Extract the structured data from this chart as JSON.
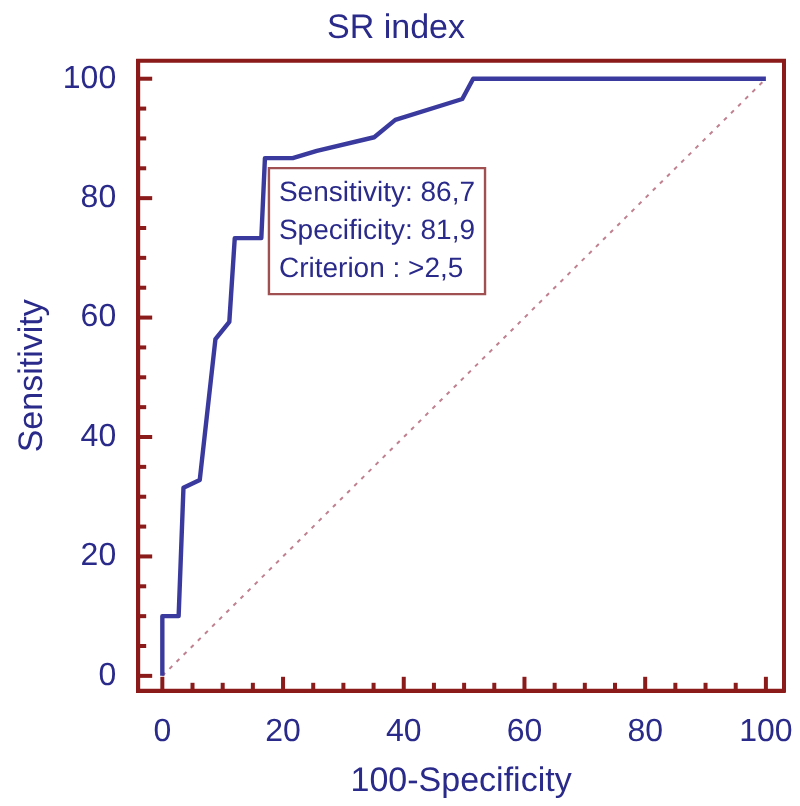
{
  "chart_data": {
    "type": "line",
    "title": "SR index",
    "xlabel": "100-Specificity",
    "ylabel": "Sensitivity",
    "xlim": [
      -4,
      103
    ],
    "ylim": [
      -2.5,
      103
    ],
    "xticks": [
      0,
      20,
      40,
      60,
      80,
      100
    ],
    "yticks": [
      0,
      20,
      40,
      60,
      80,
      100
    ],
    "grid": false,
    "legend": false,
    "marker": "none",
    "series": [
      {
        "color": "#3a3a9e",
        "line_style": "solid",
        "x": [
          0,
          0,
          2.7,
          3.5,
          6.2,
          8.8,
          11.1,
          12,
          16.4,
          17,
          21.6,
          25.6,
          35.1,
          38.6,
          49.7,
          51.5,
          100
        ],
        "values": [
          0,
          10,
          10,
          31.5,
          32.8,
          56.4,
          59.3,
          73.3,
          73.3,
          86.7,
          86.7,
          87.9,
          90.2,
          93.1,
          96.6,
          100,
          100
        ]
      },
      {
        "color": "#c08090",
        "line_style": "dotted",
        "x": [
          0,
          100
        ],
        "values": [
          0,
          100
        ]
      }
    ],
    "annotations": [
      "Sensitivity: 86,7",
      "Specificity: 81,9",
      "Criterion : >2,5"
    ]
  }
}
